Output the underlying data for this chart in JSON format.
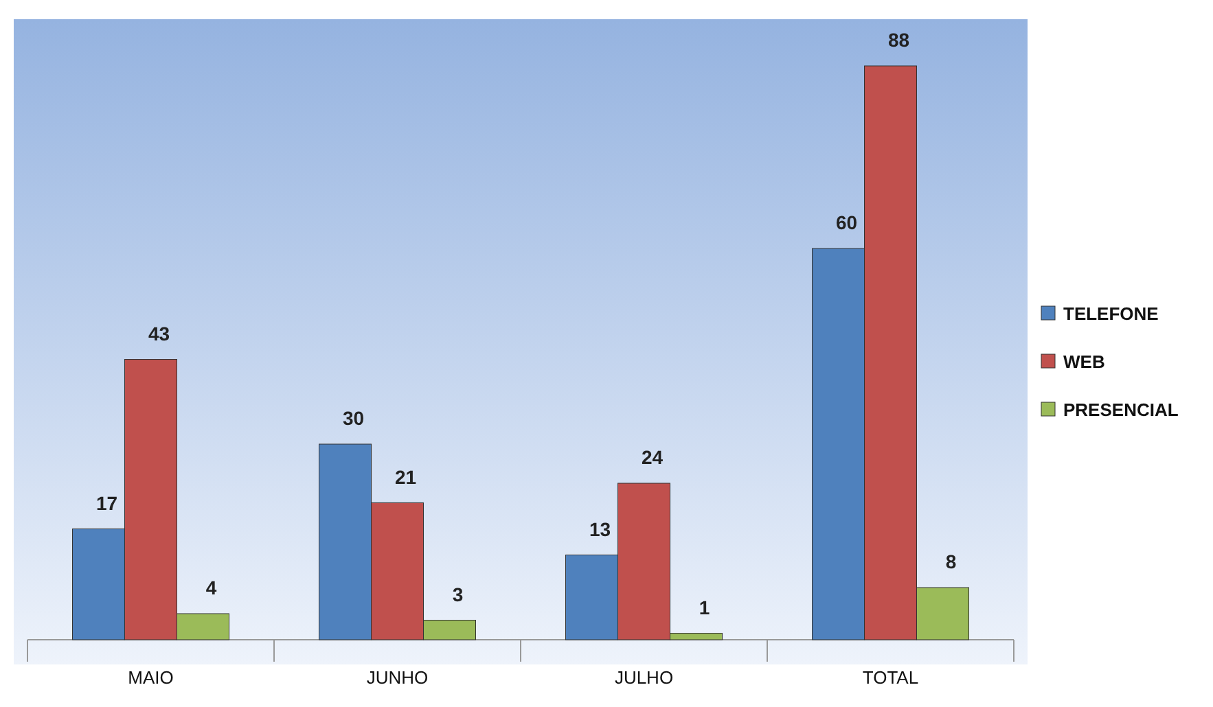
{
  "chart_data": {
    "type": "bar",
    "categories": [
      "MAIO",
      "JUNHO",
      "JULHO",
      "TOTAL"
    ],
    "series": [
      {
        "name": "TELEFONE",
        "color": "#4f81bd",
        "values": [
          17,
          30,
          13,
          60
        ]
      },
      {
        "name": "WEB",
        "color": "#c0504d",
        "values": [
          43,
          21,
          24,
          88
        ]
      },
      {
        "name": "PRESENCIAL",
        "color": "#9bbb59",
        "values": [
          4,
          3,
          1,
          8
        ]
      }
    ],
    "data_labels": true,
    "legend": "right"
  }
}
